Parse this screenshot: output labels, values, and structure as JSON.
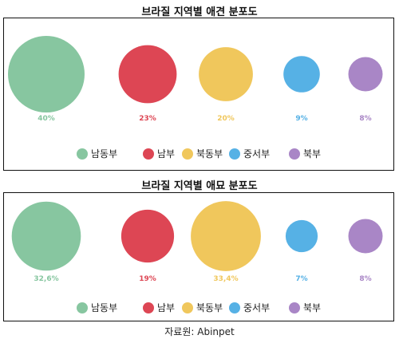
{
  "source_label": "자료원: Abinpet",
  "colors": {
    "남동부": "#87c6a0",
    "남부": "#dd4654",
    "북동부": "#f0c75c",
    "중서부": "#56b1e5",
    "북부": "#a986c6"
  },
  "chart_data": [
    {
      "type": "bubble",
      "title": "브라질 지역별 애견 분포도",
      "categories": [
        "남동부",
        "남부",
        "북동부",
        "중서부",
        "북부"
      ],
      "values": [
        40,
        23,
        20,
        9,
        8
      ],
      "value_labels": [
        "40%",
        "23%",
        "20%",
        "9%",
        "8%"
      ],
      "legend": [
        "남동부",
        "남부",
        "북동부",
        "중서부",
        "북부"
      ],
      "legend_position": "bottom"
    },
    {
      "type": "bubble",
      "title": "브라질 지역별 애묘 분포도",
      "categories": [
        "남동부",
        "남부",
        "북동부",
        "중서부",
        "북부"
      ],
      "values": [
        32.6,
        19,
        33.4,
        7,
        8
      ],
      "value_labels": [
        "32,6%",
        "19%",
        "33,4%",
        "7%",
        "8%"
      ],
      "legend": [
        "남동부",
        "남부",
        "북동부",
        "중서부",
        "북부"
      ],
      "legend_position": "bottom"
    }
  ]
}
